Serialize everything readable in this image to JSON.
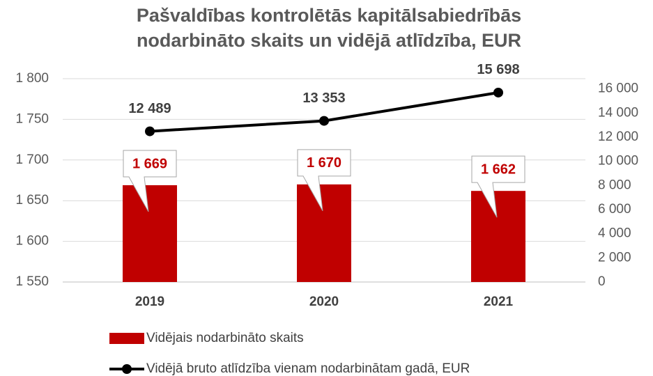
{
  "chart_data": {
    "type": "bar+line",
    "title": [
      "Pašvaldības kontrolētās kapitālsabiedrībās",
      "nodarbināto skaits un vidējā atlīdzība, EUR"
    ],
    "categories": [
      "2019",
      "2020",
      "2021"
    ],
    "series": [
      {
        "name": "Vidējais nodarbināto skaits",
        "type": "bar",
        "color": "#c00000",
        "values": [
          1669,
          1670,
          1662
        ],
        "value_labels": [
          "1 669",
          "1 670",
          "1 662"
        ]
      },
      {
        "name": "Vidējā bruto atlīdzība vienam nodarbinātam gadā, EUR",
        "type": "line",
        "axis": "y2",
        "color": "#000000",
        "values": [
          12489,
          13353,
          15698
        ],
        "value_labels": [
          "12 489",
          "13 353",
          "15 698"
        ]
      }
    ],
    "ylim": [
      1550,
      1800
    ],
    "yticks": [
      {
        "value": 1550,
        "label": "1 550"
      },
      {
        "value": 1600,
        "label": "1 600"
      },
      {
        "value": 1650,
        "label": "1 650"
      },
      {
        "value": 1700,
        "label": "1 700"
      },
      {
        "value": 1750,
        "label": "1 750"
      },
      {
        "value": 1800,
        "label": "1 800"
      }
    ],
    "y2lim": [
      0,
      16850
    ],
    "y2ticks": [
      0,
      {
        "value": 2000,
        "label": "2 000"
      },
      {
        "value": 4000,
        "label": "4 000"
      },
      {
        "value": 6000,
        "label": "6 000"
      },
      {
        "value": 8000,
        "label": "8 000"
      },
      {
        "value": 10000,
        "label": "10 000"
      },
      {
        "value": 12000,
        "label": "12 000"
      },
      {
        "value": 14000,
        "label": "14 000"
      },
      {
        "value": 16000,
        "label": "16 000"
      }
    ],
    "grid": true,
    "legend": "bottom"
  }
}
